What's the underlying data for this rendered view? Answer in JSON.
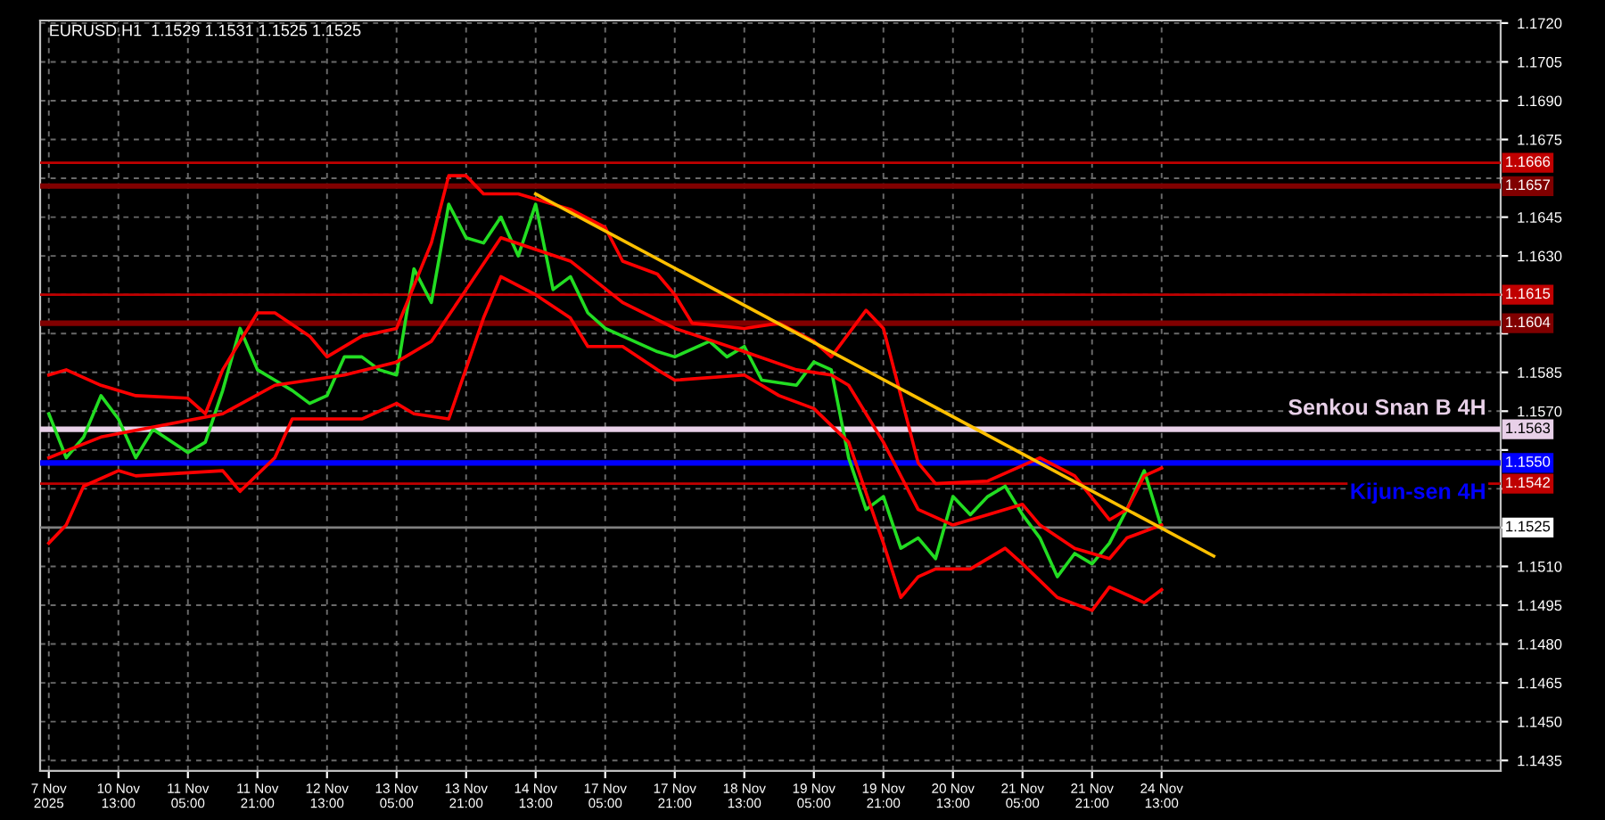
{
  "chart_data": {
    "type": "line",
    "title": "EURUSD.H1  1.1529 1.1531 1.1525 1.1525",
    "categories": [
      "7 Nov 2025",
      null,
      null,
      null,
      "10 Nov 13:00",
      null,
      null,
      null,
      "11 Nov 05:00",
      null,
      null,
      null,
      "11 Nov 21:00",
      null,
      null,
      null,
      "12 Nov 13:00",
      null,
      null,
      null,
      "13 Nov 05:00",
      null,
      null,
      null,
      "13 Nov 21:00",
      null,
      null,
      null,
      "14 Nov 13:00",
      null,
      null,
      null,
      "17 Nov 05:00",
      null,
      null,
      null,
      "17 Nov 21:00",
      null,
      null,
      null,
      "18 Nov 13:00",
      null,
      null,
      null,
      "19 Nov 05:00",
      null,
      null,
      null,
      "19 Nov 21:00",
      null,
      null,
      null,
      "20 Nov 13:00",
      null,
      null,
      null,
      "21 Nov 05:00",
      null,
      null,
      null,
      "21 Nov 21:00",
      null,
      null,
      null,
      "24 Nov 13:00",
      null,
      null,
      null,
      null,
      null,
      null,
      null,
      null,
      null,
      null,
      null,
      null,
      null,
      null,
      null,
      null,
      null,
      null,
      null
    ],
    "series": [
      {
        "color": "#22dd22",
        "values": [
          1.1569,
          1.1552,
          1.156,
          1.1576,
          1.1567,
          1.1552,
          1.1563,
          null,
          1.1554,
          1.1558,
          1.1578,
          1.1602,
          1.1586,
          1.1582,
          1.1578,
          1.1573,
          1.1576,
          1.1591,
          1.1591,
          1.1586,
          1.1584,
          1.1625,
          1.1612,
          1.165,
          1.1637,
          1.1635,
          1.1645,
          1.163,
          1.165,
          1.1617,
          1.1622,
          1.1608,
          1.1602,
          1.1599,
          null,
          1.1593,
          1.1591,
          null,
          1.1597,
          1.1591,
          1.1595,
          1.1582,
          null,
          1.158,
          1.1589,
          1.1586,
          1.1552,
          1.1532,
          1.1537,
          1.1517,
          1.1521,
          1.1513,
          1.1537,
          1.153,
          1.1537,
          1.1541,
          1.153,
          1.1521,
          1.1506,
          1.1515,
          1.1511,
          1.1519,
          1.1532,
          1.1547,
          1.1525,
          null,
          null,
          null,
          null,
          null,
          null,
          null,
          null,
          null,
          null,
          null,
          null,
          null,
          null,
          null,
          null,
          null,
          null,
          null
        ]
      },
      {
        "color": "#ff0000",
        "values": [
          1.1584,
          1.1586,
          null,
          1.158,
          null,
          1.1576,
          null,
          null,
          1.1575,
          1.1569,
          1.1586,
          null,
          1.1608,
          1.1608,
          null,
          1.1599,
          1.1591,
          null,
          1.1599,
          null,
          1.1602,
          null,
          1.1635,
          1.1661,
          1.1661,
          1.1654,
          null,
          1.1654,
          null,
          null,
          1.1648,
          null,
          1.1641,
          1.1628,
          null,
          1.1623,
          1.1615,
          1.1604,
          null,
          null,
          1.1602,
          null,
          1.1604,
          null,
          1.1597,
          1.1591,
          null,
          1.1609,
          1.1602,
          null,
          1.155,
          1.1542,
          null,
          null,
          1.1543,
          null,
          null,
          1.1552,
          null,
          1.1545,
          null,
          1.1528,
          1.1532,
          1.1545,
          1.1548,
          null,
          null,
          null,
          null,
          null,
          null,
          null,
          null,
          null,
          null,
          null,
          null,
          null,
          null,
          null,
          null,
          null,
          null,
          null
        ]
      },
      {
        "color": "#ff0000",
        "values": [
          1.1552,
          null,
          null,
          1.156,
          null,
          null,
          null,
          null,
          null,
          null,
          1.1569,
          null,
          null,
          1.158,
          null,
          null,
          null,
          1.1584,
          null,
          null,
          1.1589,
          null,
          1.1597,
          null,
          1.1617,
          null,
          1.1637,
          null,
          null,
          null,
          1.1628,
          null,
          null,
          1.1612,
          null,
          null,
          1.1602,
          null,
          null,
          null,
          1.1593,
          null,
          null,
          1.1586,
          null,
          1.1584,
          1.158,
          null,
          1.1558,
          null,
          1.1532,
          null,
          1.1526,
          null,
          1.153,
          null,
          1.1534,
          1.1526,
          null,
          1.1517,
          null,
          1.1513,
          1.1521,
          null,
          1.1526,
          null,
          null,
          null,
          null,
          null,
          null,
          null,
          null,
          null,
          null,
          null,
          null,
          null,
          null,
          null,
          null,
          null,
          null,
          null
        ]
      },
      {
        "color": "#ff0000",
        "values": [
          1.1519,
          1.1526,
          1.1541,
          null,
          1.1547,
          1.1545,
          null,
          null,
          null,
          null,
          1.1547,
          1.1539,
          null,
          1.1552,
          1.1567,
          null,
          null,
          null,
          1.1567,
          null,
          1.1573,
          1.1569,
          null,
          1.1567,
          null,
          1.1606,
          1.1622,
          null,
          1.1615,
          null,
          1.1606,
          1.1595,
          null,
          1.1595,
          null,
          1.1586,
          1.1582,
          null,
          null,
          null,
          1.1584,
          null,
          1.1576,
          null,
          1.1571,
          null,
          1.1558,
          null,
          1.1519,
          1.1498,
          1.1506,
          1.1509,
          null,
          1.1509,
          null,
          1.1517,
          1.1511,
          null,
          1.1498,
          null,
          1.1493,
          1.1502,
          null,
          1.1496,
          1.1501,
          null,
          null,
          null,
          null,
          null,
          null,
          null,
          null,
          null,
          null,
          null,
          null,
          null,
          null,
          null,
          null,
          null,
          null,
          null
        ]
      },
      {
        "color": "#ffc000",
        "values": [
          null,
          null,
          null,
          null,
          null,
          null,
          null,
          null,
          null,
          null,
          null,
          null,
          null,
          null,
          null,
          null,
          null,
          null,
          null,
          null,
          null,
          null,
          null,
          null,
          null,
          null,
          null,
          null,
          1.1654,
          null,
          null,
          null,
          null,
          null,
          null,
          null,
          null,
          null,
          null,
          null,
          null,
          null,
          null,
          null,
          null,
          null,
          null,
          null,
          null,
          null,
          null,
          null,
          null,
          null,
          null,
          null,
          null,
          null,
          null,
          null,
          null,
          null,
          null,
          null,
          null,
          null,
          null,
          1.1514,
          null,
          null,
          null,
          null,
          null,
          null,
          null,
          null,
          null,
          null,
          null,
          null,
          null,
          null,
          null,
          null
        ]
      }
    ],
    "ref_lines": [
      {
        "axis": "y",
        "value": 1.1666,
        "label": "1.1666",
        "color": "#c00000"
      },
      {
        "axis": "y",
        "value": 1.1657,
        "label": "1.1657",
        "color": "#800000"
      },
      {
        "axis": "y",
        "value": 1.1615,
        "label": "1.1615",
        "color": "#c00000"
      },
      {
        "axis": "y",
        "value": 1.1604,
        "label": "1.1604",
        "color": "#800000"
      },
      {
        "axis": "y",
        "value": 1.1563,
        "label": "1.1563",
        "color": "#e8d0e8"
      },
      {
        "axis": "y",
        "value": 1.155,
        "label": "1.1550",
        "color": "#0000ff"
      },
      {
        "axis": "y",
        "value": 1.1542,
        "label": "1.1542",
        "color": "#c00000"
      },
      {
        "axis": "y",
        "value": 1.1525,
        "label": "1.1525",
        "color": "#808080"
      }
    ],
    "annotations": [
      {
        "text": "Senkou Snan B 4H",
        "y": 1.1563
      },
      {
        "text": "Kijun-sen 4H",
        "y": 1.155
      }
    ],
    "ylim": [
      1.1431,
      1.1721
    ],
    "yticks": [
      {
        "value": 1.1435,
        "label": "1.1435"
      },
      {
        "value": 1.145,
        "label": "1.1450"
      },
      {
        "value": 1.1465,
        "label": "1.1465"
      },
      {
        "value": 1.148,
        "label": "1.1480"
      },
      {
        "value": 1.1495,
        "label": "1.1495"
      },
      {
        "value": 1.151,
        "label": "1.1510"
      },
      {
        "value": 1.1525,
        "label": null
      },
      {
        "value": 1.154,
        "label": null
      },
      {
        "value": 1.1555,
        "label": null
      },
      {
        "value": 1.157,
        "label": "1.1570"
      },
      {
        "value": 1.1585,
        "label": "1.1585"
      },
      {
        "value": 1.16,
        "label": null
      },
      {
        "value": 1.1615,
        "label": null
      },
      {
        "value": 1.163,
        "label": "1.1630"
      },
      {
        "value": 1.1645,
        "label": "1.1645"
      },
      {
        "value": 1.166,
        "label": null
      },
      {
        "value": 1.1675,
        "label": "1.1675"
      },
      {
        "value": 1.169,
        "label": "1.1690"
      },
      {
        "value": 1.1705,
        "label": "1.1705"
      },
      {
        "value": 1.172,
        "label": "1.1720"
      }
    ],
    "grid": true,
    "line_style": "solid"
  }
}
